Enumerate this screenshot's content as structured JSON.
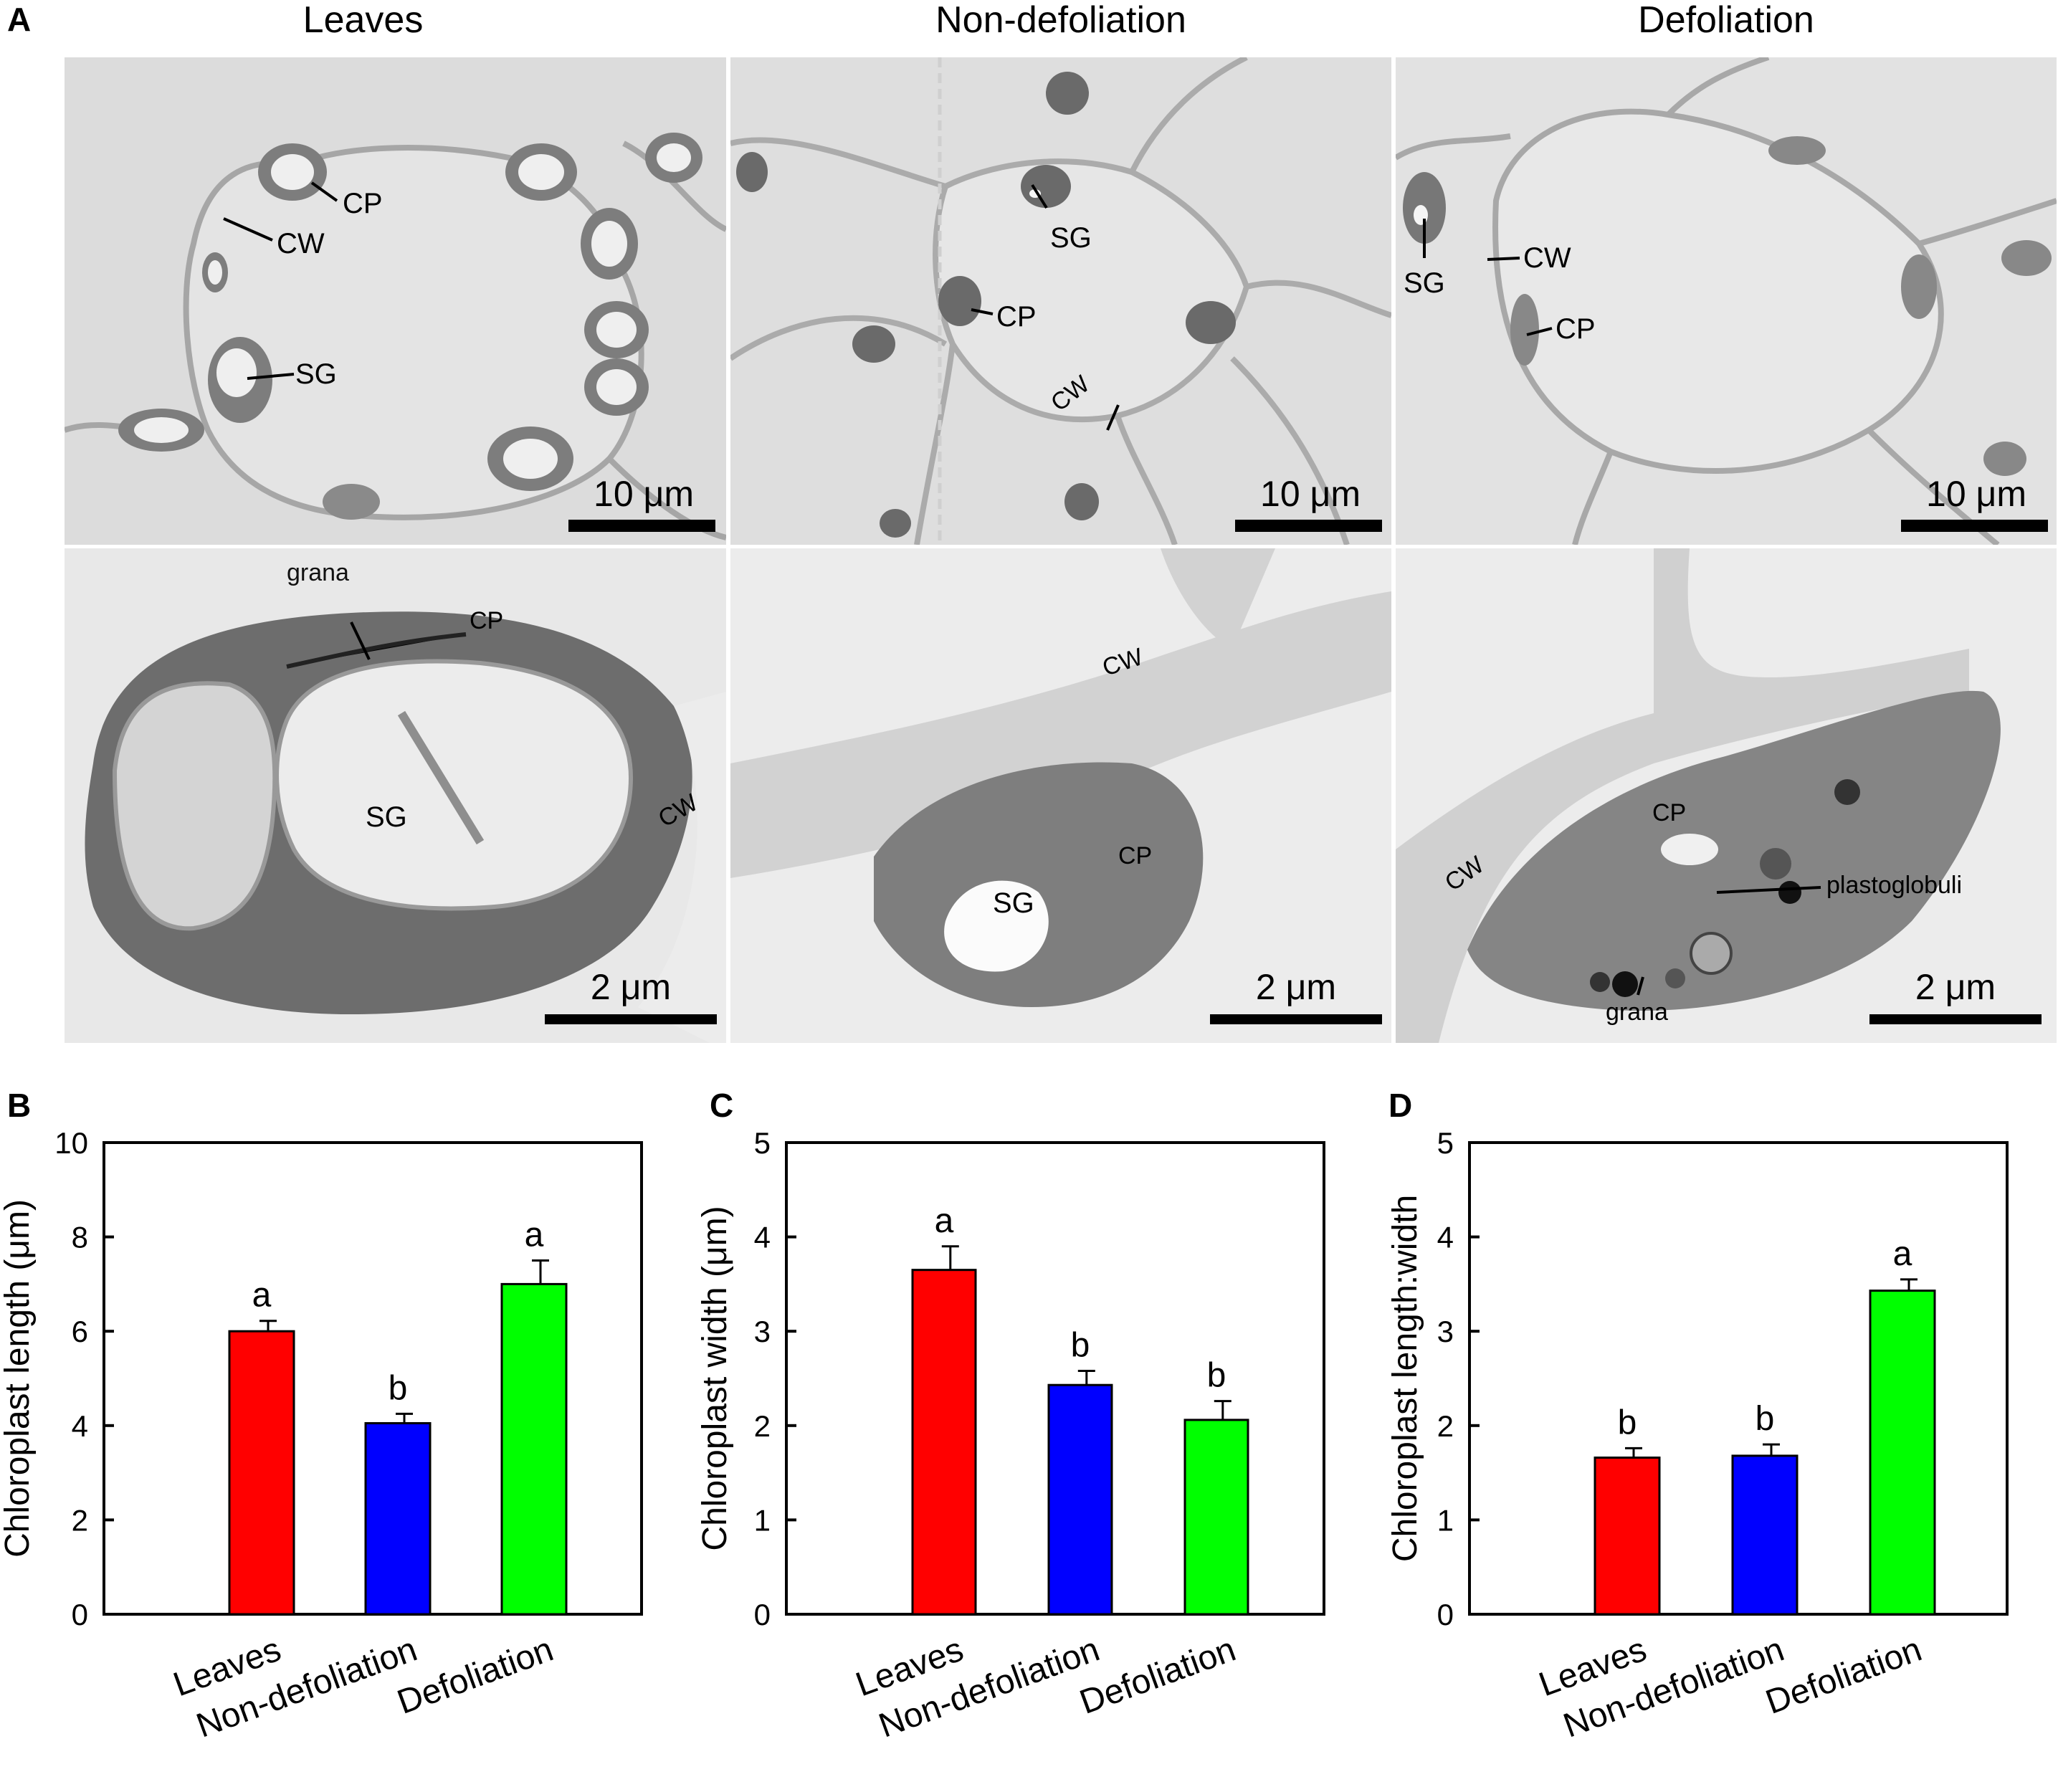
{
  "panel_labels": {
    "a": "A",
    "b": "B",
    "c": "C",
    "d": "D"
  },
  "micrographs": {
    "column_titles": [
      "Leaves",
      "Non-defoliation",
      "Defoliation"
    ],
    "scale_bars": {
      "top": [
        "10 μm",
        "10 μm",
        "10 μm"
      ],
      "bottom": [
        "2 μm",
        "2 μm",
        "2 μm"
      ]
    },
    "annotations": {
      "top_leaves": [
        "CP",
        "CW",
        "SG"
      ],
      "top_nondefoliation": [
        "SG",
        "CP",
        "CW"
      ],
      "top_defoliation": [
        "SG",
        "CW",
        "CP"
      ],
      "bottom_leaves": [
        "grana",
        "CP",
        "SG",
        "CW"
      ],
      "bottom_nondefoliation": [
        "CW",
        "CP",
        "SG"
      ],
      "bottom_defoliation": [
        "CW",
        "CP",
        "plastoglobuli",
        "grana"
      ]
    }
  },
  "chart_data": [
    {
      "type": "bar",
      "panel": "B",
      "categories": [
        "Leaves",
        "Non-defoliation",
        "Defoliation"
      ],
      "values": [
        6.0,
        4.05,
        7.0
      ],
      "errors": [
        0.22,
        0.2,
        0.5
      ],
      "letters": [
        "a",
        "b",
        "a"
      ],
      "colors": [
        "#ff0000",
        "#0000ff",
        "#00ff00"
      ],
      "ylabel": "Chloroplast length (μm)",
      "ylim": [
        0,
        10
      ],
      "yticks": [
        "0",
        "2",
        "4",
        "6",
        "8",
        "10"
      ]
    },
    {
      "type": "bar",
      "panel": "C",
      "categories": [
        "Leaves",
        "Non-defoliation",
        "Defoliation"
      ],
      "values": [
        3.65,
        2.43,
        2.06
      ],
      "errors": [
        0.25,
        0.15,
        0.2
      ],
      "letters": [
        "a",
        "b",
        "b"
      ],
      "colors": [
        "#ff0000",
        "#0000ff",
        "#00ff00"
      ],
      "ylabel": "Chloroplast width (μm)",
      "ylim": [
        0,
        5
      ],
      "yticks": [
        "0",
        "1",
        "2",
        "3",
        "4",
        "5"
      ]
    },
    {
      "type": "bar",
      "panel": "D",
      "categories": [
        "Leaves",
        "Non-defoliation",
        "Defoliation"
      ],
      "values": [
        1.66,
        1.68,
        3.43
      ],
      "errors": [
        0.1,
        0.12,
        0.12
      ],
      "letters": [
        "b",
        "b",
        "a"
      ],
      "colors": [
        "#ff0000",
        "#0000ff",
        "#00ff00"
      ],
      "ylabel": "Chloroplast length:width",
      "ylim": [
        0,
        5
      ],
      "yticks": [
        "0",
        "1",
        "2",
        "3",
        "4",
        "5"
      ]
    }
  ]
}
